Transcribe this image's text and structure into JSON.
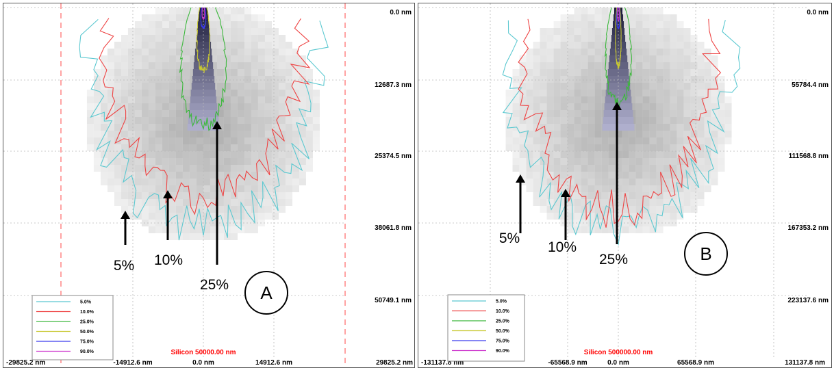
{
  "chart_data": [
    {
      "type": "heatmap",
      "panel_letter": "A",
      "title": "Silicon 50000.00 nm",
      "x_ticks": [
        "-29825.2 nm",
        "-14912.6 nm",
        "0.0 nm",
        "14912.6 nm",
        "29825.2 nm"
      ],
      "x_values": [
        -29825.2,
        -14912.6,
        0.0,
        14912.6,
        29825.2
      ],
      "y_ticks": [
        "0.0 nm",
        "12687.3 nm",
        "25374.5 nm",
        "38061.8 nm",
        "50749.1 nm"
      ],
      "y_values": [
        0.0,
        12687.3,
        25374.5,
        38061.8,
        50749.1
      ],
      "legend": [
        "5.0%",
        "10.0%",
        "25.0%",
        "50.0%",
        "75.0%",
        "90.0%"
      ],
      "annotations": [
        "5%",
        "10%",
        "25%"
      ],
      "contours": [
        {
          "level": "5.0%",
          "half_width": 24500,
          "depth": 38500
        },
        {
          "level": "10.0%",
          "half_width": 21000,
          "depth": 33000
        },
        {
          "level": "25.0%",
          "half_width": 7000,
          "depth": 20500
        },
        {
          "level": "50.0%",
          "half_width": 2000,
          "depth": 11000
        },
        {
          "level": "75.0%",
          "half_width": 800,
          "depth": 3500
        },
        {
          "level": "90.0%",
          "half_width": 400,
          "depth": 2000
        }
      ]
    },
    {
      "type": "heatmap",
      "panel_letter": "B",
      "title": "Silicon 500000.00 nm",
      "x_ticks": [
        "-131137.8 nm",
        "-65568.9 nm",
        "0.0 nm",
        "65568.9 nm",
        "131137.8 nm"
      ],
      "x_values": [
        -131137.8,
        -65568.9,
        0.0,
        65568.9,
        131137.8
      ],
      "y_ticks": [
        "0.0 nm",
        "55784.4 nm",
        "111568.8 nm",
        "167353.2 nm",
        "223137.6 nm"
      ],
      "y_values": [
        0.0,
        55784.4,
        111568.8,
        167353.2,
        223137.6
      ],
      "legend": [
        "5.0%",
        "10.0%",
        "25.0%",
        "50.0%",
        "75.0%",
        "90.0%"
      ],
      "annotations": [
        "5%",
        "10%",
        "25%"
      ],
      "contours": [
        {
          "level": "5.0%",
          "half_width": 95000,
          "depth": 168000
        },
        {
          "level": "10.0%",
          "half_width": 80000,
          "depth": 155000
        },
        {
          "level": "25.0%",
          "half_width": 16000,
          "depth": 73000
        },
        {
          "level": "50.0%",
          "half_width": 3500,
          "depth": 45000
        },
        {
          "level": "75.0%",
          "half_width": 2000,
          "depth": 16000
        },
        {
          "level": "90.0%",
          "half_width": 1200,
          "depth": 10000
        }
      ]
    }
  ],
  "colors": {
    "5.0%": "#5bc8d0",
    "10.0%": "#ee4444",
    "25.0%": "#3cb83c",
    "50.0%": "#c8c832",
    "75.0%": "#3c3cee",
    "90.0%": "#cc33cc",
    "title": "#ff0000",
    "grid": "#b8b8b8",
    "boundary": "#ff6666"
  }
}
